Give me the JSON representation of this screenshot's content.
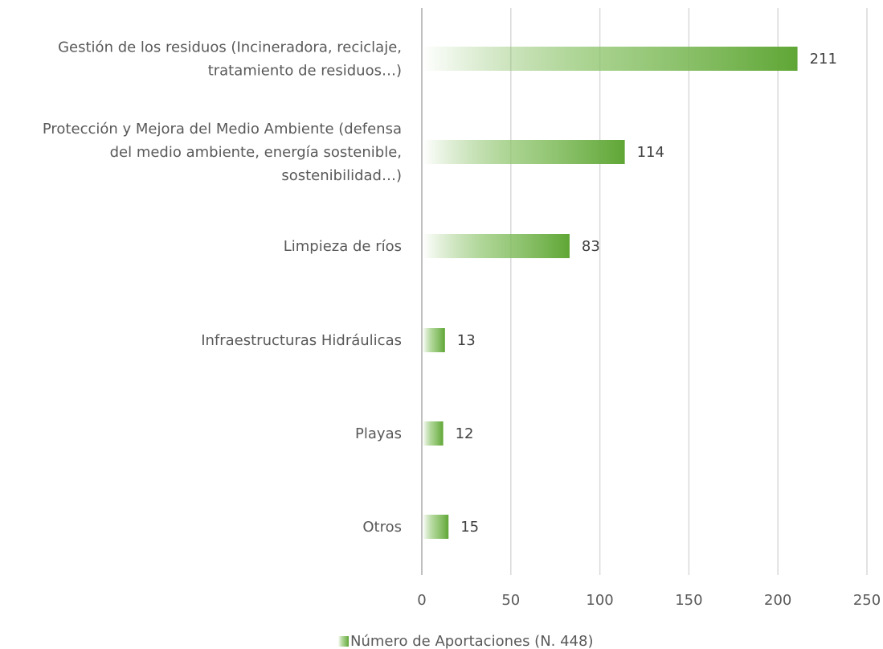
{
  "chart_data": {
    "type": "bar",
    "orientation": "horizontal",
    "categories": [
      [
        "Gestión de los residuos (Incineradora, reciclaje,",
        "tratamiento de residuos…)"
      ],
      [
        "Protección y Mejora del Medio Ambiente (defensa",
        "del medio ambiente, energía sostenible,",
        "sostenibilidad…)"
      ],
      [
        "Limpieza de ríos"
      ],
      [
        "Infraestructuras Hidráulicas"
      ],
      [
        "Playas"
      ],
      [
        "Otros"
      ]
    ],
    "series": [
      {
        "name": "Número de Aportaciones (N. 448)",
        "values": [
          211,
          114,
          83,
          13,
          12,
          15
        ],
        "color": "#6aaf3f"
      }
    ],
    "data_labels": [
      "211",
      "114",
      "83",
      "13",
      "12",
      "15"
    ],
    "xlim": [
      0,
      250
    ],
    "ticks": [
      0,
      50,
      100,
      150,
      200,
      250
    ],
    "tick_labels": [
      "0",
      "50",
      "100",
      "150",
      "200",
      "250"
    ],
    "grid": "vertical",
    "legend": "bottom-center",
    "bar_gradient": true
  }
}
